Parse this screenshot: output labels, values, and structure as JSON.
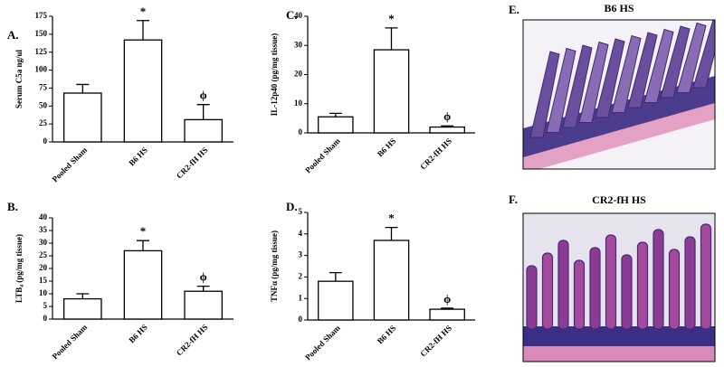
{
  "chart_data": [
    {
      "type": "bar",
      "label": "A.",
      "ylabel": "Serum C5a ng/ul",
      "categories": [
        "Pooled Sham",
        "B6 HS",
        "CR2-fH HS"
      ],
      "values": [
        68,
        142,
        31
      ],
      "errors": [
        12,
        27,
        21
      ],
      "bar_labels": [
        null,
        "*",
        "ϕ"
      ],
      "color": "#ffffff",
      "ylim": [
        0,
        175
      ],
      "yticks": [
        0,
        25,
        50,
        75,
        100,
        125,
        150,
        175
      ]
    },
    {
      "type": "bar",
      "label": "B.",
      "ylabel": "LTB₄ (pg/mg tissue)",
      "categories": [
        "Pooled Sham",
        "B6 HS",
        "CR2-fH HS"
      ],
      "values": [
        8,
        27,
        11
      ],
      "errors": [
        2,
        4,
        2
      ],
      "bar_labels": [
        null,
        "*",
        "ϕ"
      ],
      "color": "#ffffff",
      "ylim": [
        0,
        40
      ],
      "yticks": [
        0,
        5,
        10,
        15,
        20,
        25,
        30,
        35,
        40
      ]
    },
    {
      "type": "bar",
      "label": "C.",
      "ylabel": "IL-12p40 (pg/mg tissue)",
      "categories": [
        "Pooled Sham",
        "B6 HS",
        "CR2-fH HS"
      ],
      "values": [
        5.5,
        28.5,
        2
      ],
      "errors": [
        1.2,
        7.5,
        0.4
      ],
      "bar_labels": [
        null,
        "*",
        "ϕ"
      ],
      "color": "#ffffff",
      "ylim": [
        0,
        40
      ],
      "yticks": [
        0,
        10,
        20,
        30,
        40
      ]
    },
    {
      "type": "bar",
      "label": "D.",
      "ylabel": "TNFα (pg/mg tissue)",
      "categories": [
        "Pooled Sham",
        "B6 HS",
        "CR2-fH HS"
      ],
      "values": [
        1.8,
        3.7,
        0.5
      ],
      "errors": [
        0.4,
        0.6,
        0.05
      ],
      "bar_labels": [
        null,
        "*",
        "ϕ"
      ],
      "color": "#ffffff",
      "ylim": [
        0,
        5
      ],
      "yticks": [
        0,
        1,
        2,
        3,
        4,
        5
      ]
    }
  ],
  "images": [
    {
      "label": "E.",
      "title": "B6 HS"
    },
    {
      "label": "F.",
      "title": "CR2-fH HS"
    }
  ]
}
